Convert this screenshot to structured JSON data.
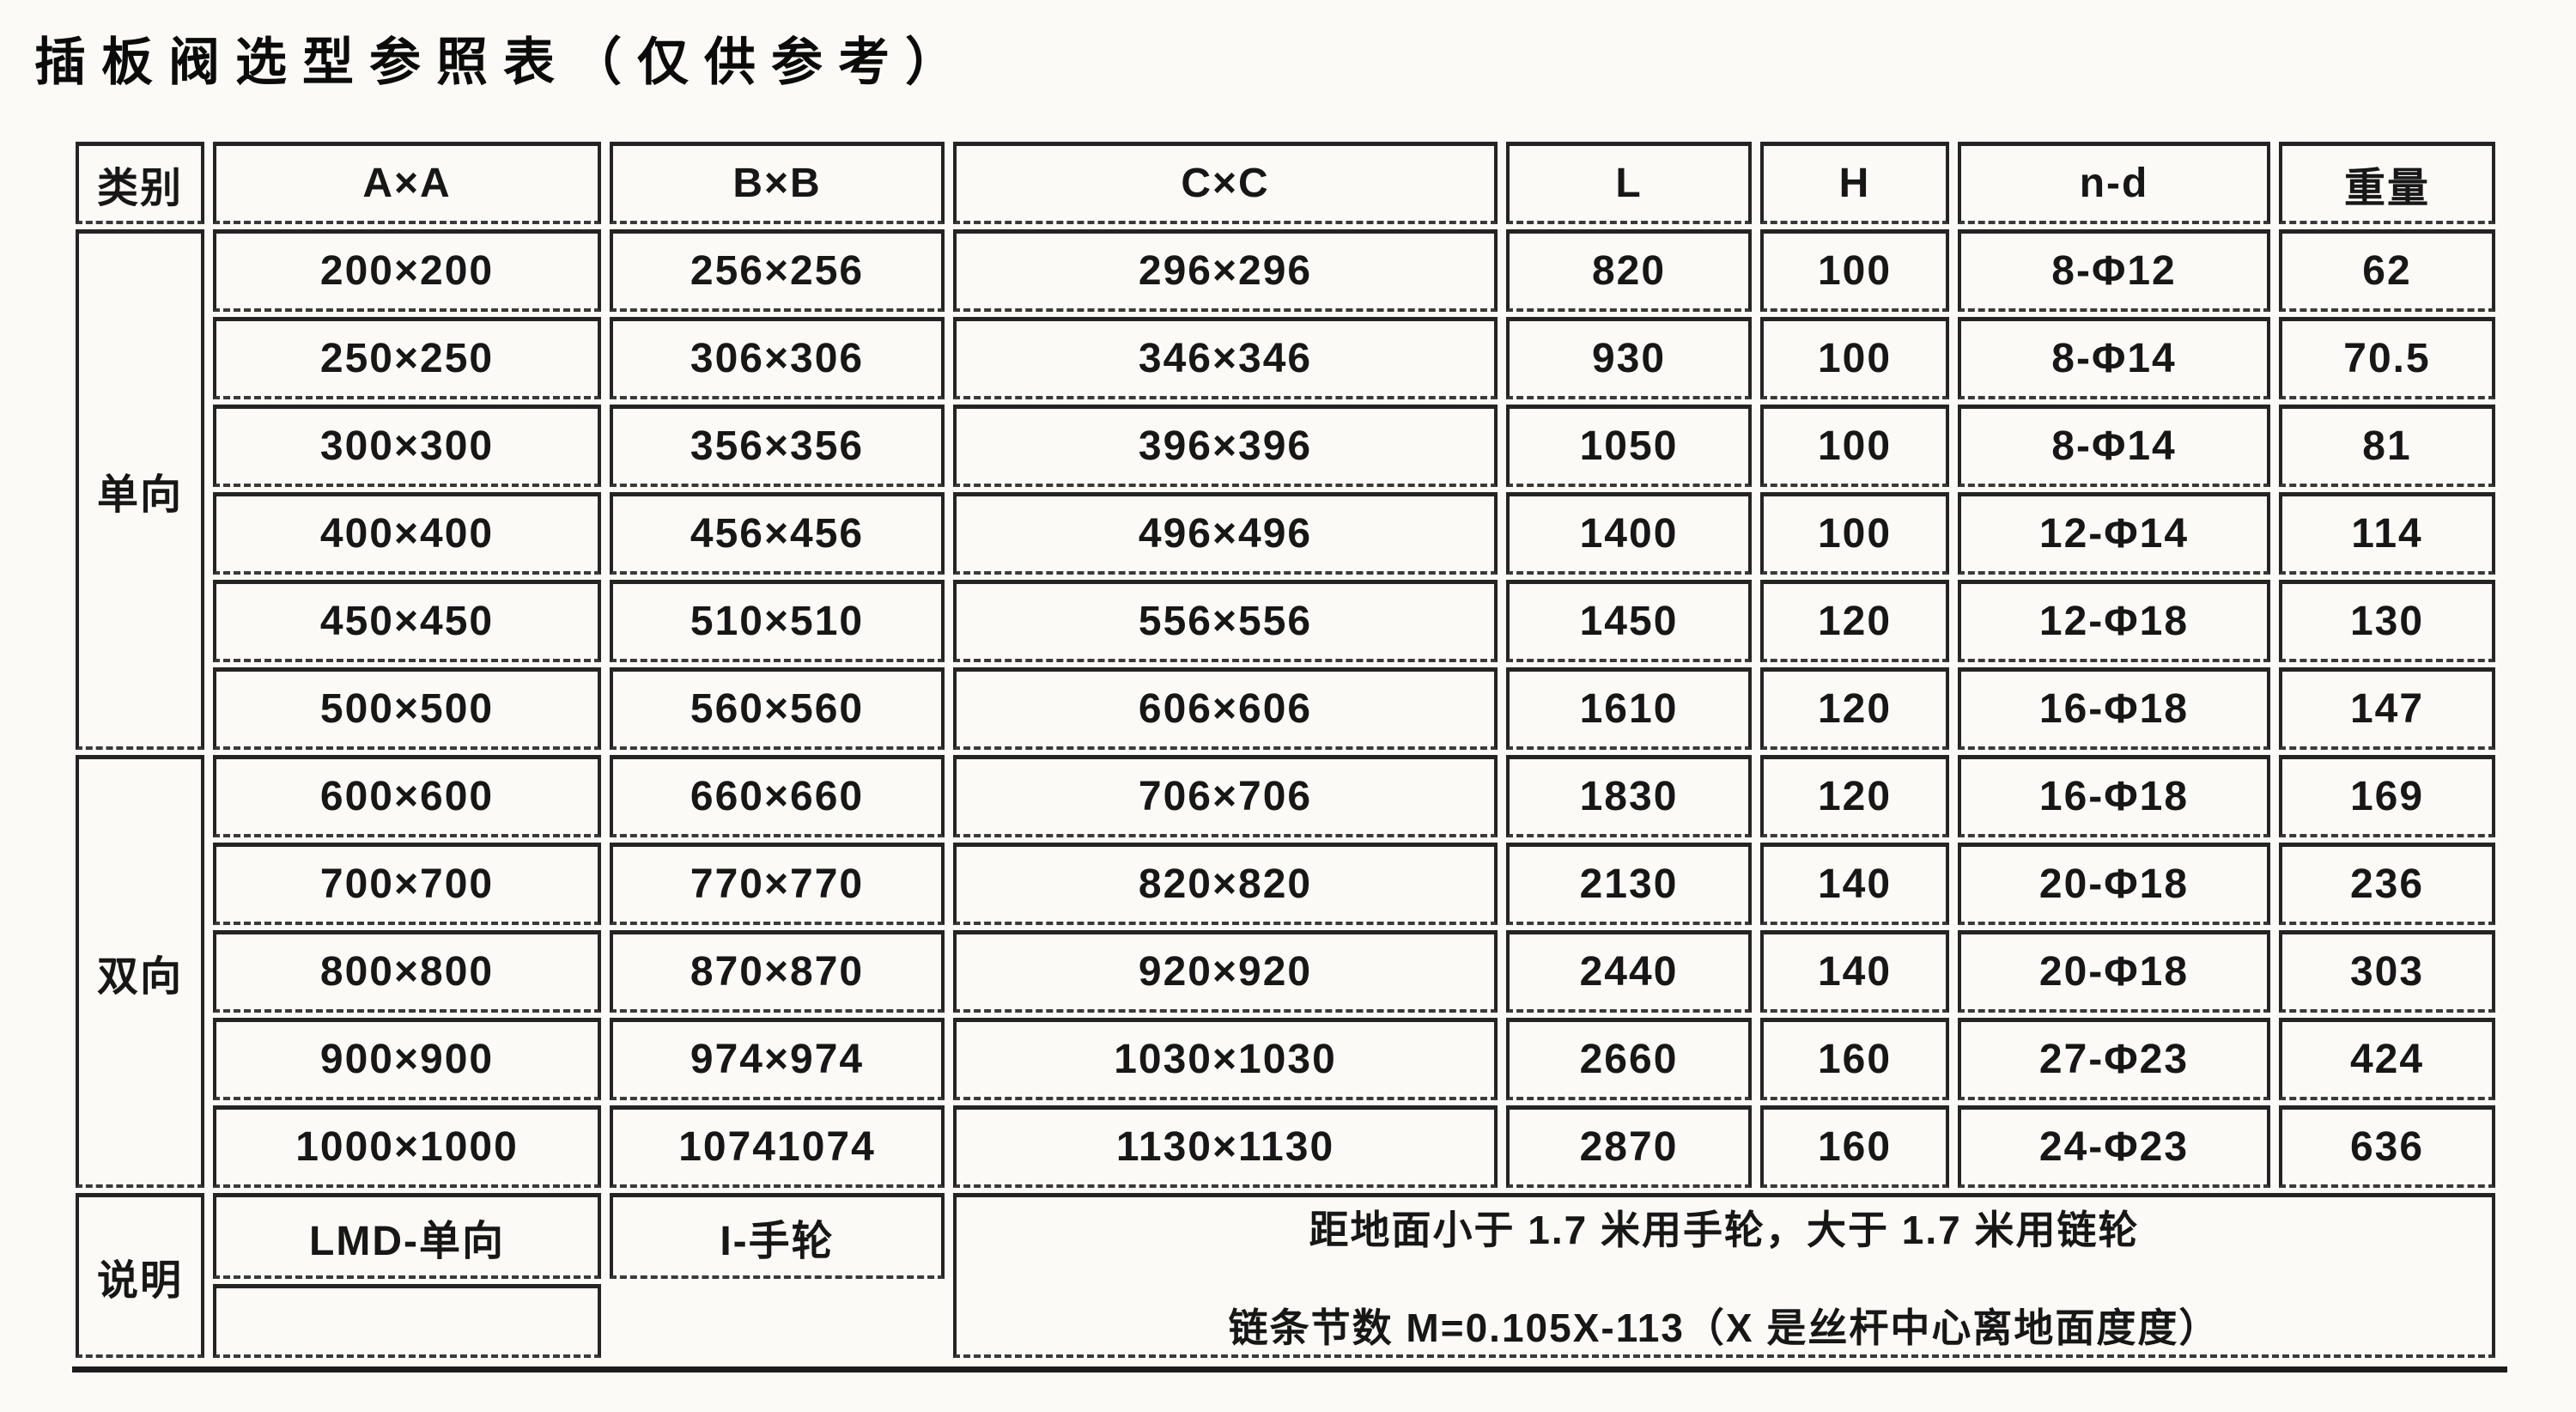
{
  "title": "插板阀选型参照表（仅供参考）",
  "table": {
    "headers": [
      "类别",
      "A×A",
      "B×B",
      "C×C",
      "L",
      "H",
      "n-d",
      "重量"
    ],
    "groups": [
      {
        "label": "单向",
        "rows": [
          {
            "axa": "200×200",
            "bxb": "256×256",
            "cxc": "296×296",
            "l": "820",
            "h": "100",
            "nd": "8-Φ12",
            "weight": "62"
          },
          {
            "axa": "250×250",
            "bxb": "306×306",
            "cxc": "346×346",
            "l": "930",
            "h": "100",
            "nd": "8-Φ14",
            "weight": "70.5"
          },
          {
            "axa": "300×300",
            "bxb": "356×356",
            "cxc": "396×396",
            "l": "1050",
            "h": "100",
            "nd": "8-Φ14",
            "weight": "81"
          },
          {
            "axa": "400×400",
            "bxb": "456×456",
            "cxc": "496×496",
            "l": "1400",
            "h": "100",
            "nd": "12-Φ14",
            "weight": "114"
          },
          {
            "axa": "450×450",
            "bxb": "510×510",
            "cxc": "556×556",
            "l": "1450",
            "h": "120",
            "nd": "12-Φ18",
            "weight": "130"
          },
          {
            "axa": "500×500",
            "bxb": "560×560",
            "cxc": "606×606",
            "l": "1610",
            "h": "120",
            "nd": "16-Φ18",
            "weight": "147"
          }
        ]
      },
      {
        "label": "双向",
        "rows": [
          {
            "axa": "600×600",
            "bxb": "660×660",
            "cxc": "706×706",
            "l": "1830",
            "h": "120",
            "nd": "16-Φ18",
            "weight": "169"
          },
          {
            "axa": "700×700",
            "bxb": "770×770",
            "cxc": "820×820",
            "l": "2130",
            "h": "140",
            "nd": "20-Φ18",
            "weight": "236"
          },
          {
            "axa": "800×800",
            "bxb": "870×870",
            "cxc": "920×920",
            "l": "2440",
            "h": "140",
            "nd": "20-Φ18",
            "weight": "303"
          },
          {
            "axa": "900×900",
            "bxb": "974×974",
            "cxc": "1030×1030",
            "l": "2660",
            "h": "160",
            "nd": "27-Φ23",
            "weight": "424"
          },
          {
            "axa": "1000×1000",
            "bxb": "10741074",
            "cxc": "1130×1130",
            "l": "2870",
            "h": "160",
            "nd": "24-Φ23",
            "weight": "636"
          }
        ]
      }
    ],
    "notes": {
      "label": "说明",
      "model_cell": "LMD-单向",
      "handwheel_cell": "I-手轮",
      "remark_line1": "距地面小于 1.7 米用手轮，大于 1.7 米用链轮",
      "remark_line2": "链条节数 M=0.105X-113（X 是丝杆中心离地面度度）"
    }
  }
}
